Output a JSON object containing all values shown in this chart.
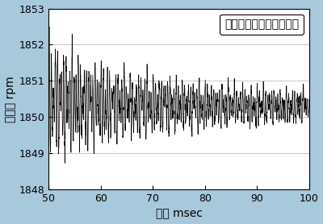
{
  "title": "",
  "xlabel": "時間 msec",
  "ylabel": "回転数 rpm",
  "xlim": [
    50,
    100
  ],
  "ylim": [
    1848,
    1853
  ],
  "xticks": [
    50,
    60,
    70,
    80,
    90,
    100
  ],
  "yticks": [
    1848,
    1849,
    1850,
    1851,
    1852,
    1853
  ],
  "legend_label": "一大歯車軸受（内軌側）",
  "base_rpm": 1850.3,
  "x_start": 50,
  "x_end": 100,
  "num_points": 2000,
  "line_color": "#000000",
  "background_color": "#ffffff",
  "border_color": "#a8c8dc",
  "grid_color": "#c0c0c0",
  "grid_alpha": 1.0,
  "font_size_ticks": 9,
  "font_size_label": 10,
  "font_size_legend": 10
}
